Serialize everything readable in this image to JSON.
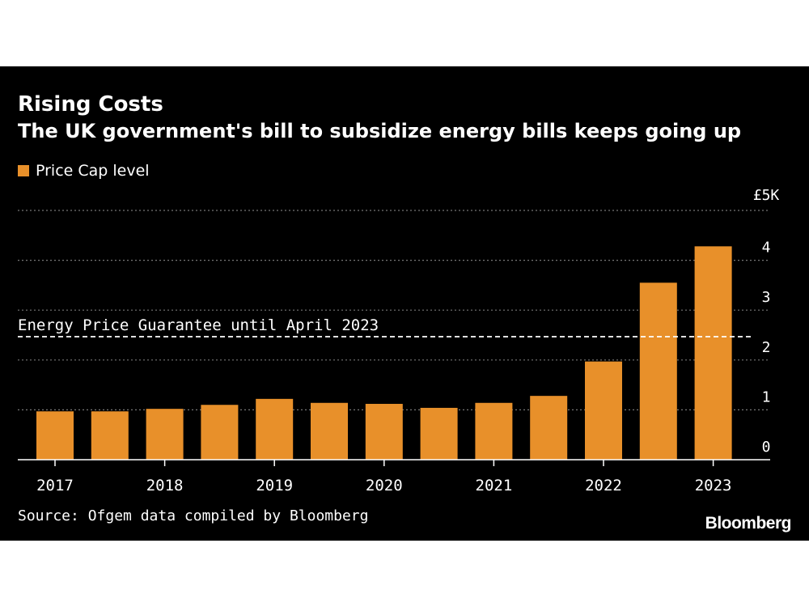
{
  "header": {
    "title": "Rising Costs",
    "subtitle": "The UK government's bill to subsidize energy bills keeps going up"
  },
  "legend": {
    "label": "Price Cap level"
  },
  "footer": {
    "source": "Source: Ofgem data compiled by Bloomberg",
    "brand": "Bloomberg"
  },
  "colors": {
    "bar": "#e8902a",
    "background": "#000000",
    "text": "#ffffff",
    "gridline": "#777777"
  },
  "chart_data": {
    "type": "bar",
    "values": [
      0.97,
      0.97,
      1.02,
      1.1,
      1.22,
      1.14,
      1.12,
      1.04,
      1.14,
      1.28,
      1.97,
      3.55,
      4.28
    ],
    "x_tick_labels": [
      "2017",
      "2018",
      "2019",
      "2020",
      "2021",
      "2022",
      "2023"
    ],
    "x_tick_bar_index": [
      0.0,
      2.0,
      4.0,
      6.0,
      8.0,
      10.0,
      12.0
    ],
    "y_tick_labels": [
      "0",
      "1",
      "2",
      "3",
      "4",
      "£5K"
    ],
    "y_tick_values": [
      0,
      1,
      2,
      3,
      4,
      5
    ],
    "ylim": [
      0,
      5
    ],
    "grid": true,
    "y_axis_side": "right",
    "legend_position": "top-left",
    "reference_line": {
      "value": 2.5,
      "label": "Energy Price Guarantee until April 2023",
      "style": "dashed"
    }
  }
}
